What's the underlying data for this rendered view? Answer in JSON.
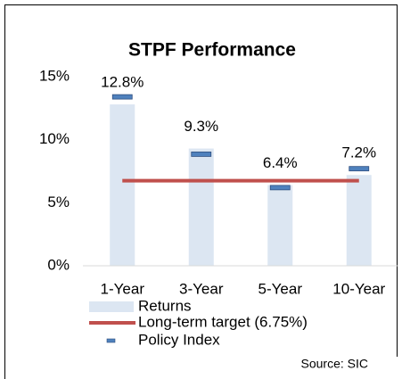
{
  "chart_data": {
    "type": "bar",
    "title": "STPF Performance",
    "categories": [
      "1-Year",
      "3-Year",
      "5-Year",
      "10-Year"
    ],
    "series": [
      {
        "name": "Returns",
        "kind": "bar",
        "color": "#dce6f2",
        "values": [
          12.8,
          9.3,
          6.4,
          7.2
        ],
        "value_labels": [
          "12.8%",
          "9.3%",
          "6.4%",
          "7.2%"
        ]
      },
      {
        "name": "Long-term target (6.75%)",
        "kind": "line",
        "color": "#c0504d",
        "values": [
          6.75,
          6.75,
          6.75,
          6.75
        ]
      },
      {
        "name": "Policy Index",
        "kind": "marker",
        "color": "#4f81bd",
        "values": [
          13.4,
          8.85,
          6.2,
          7.7
        ]
      }
    ],
    "ylim": [
      0,
      15
    ],
    "yticks": [
      {
        "value": 0,
        "label": "0%"
      },
      {
        "value": 5,
        "label": "5%"
      },
      {
        "value": 10,
        "label": "10%"
      },
      {
        "value": 15,
        "label": "15%"
      }
    ],
    "source": "Source: SIC"
  }
}
